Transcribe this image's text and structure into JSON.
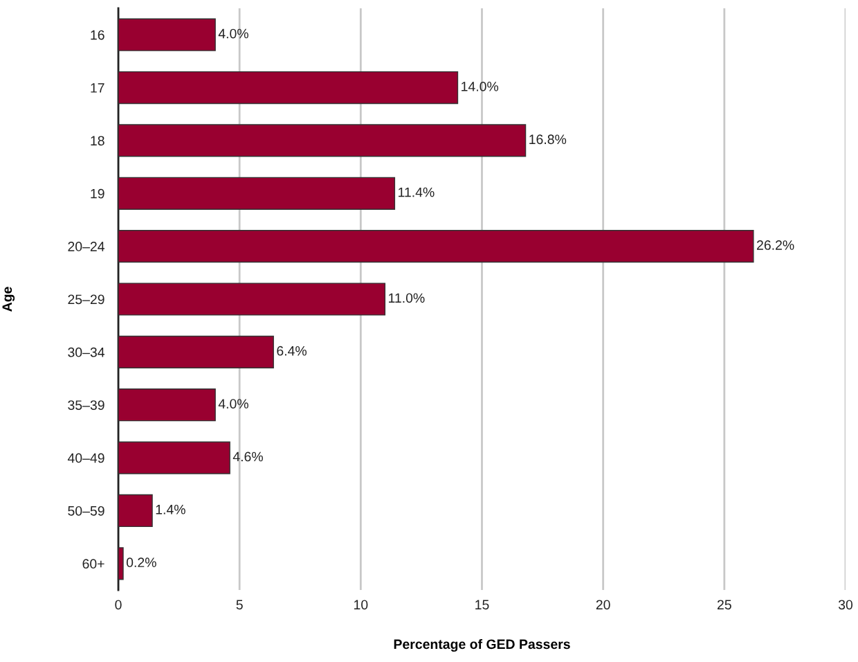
{
  "chart_data": {
    "type": "bar",
    "orientation": "horizontal",
    "xlabel": "Percentage of GED Passers",
    "ylabel": "Age",
    "categories": [
      "16",
      "17",
      "18",
      "19",
      "20–24",
      "25–29",
      "30–34",
      "35–39",
      "40–49",
      "50–59",
      "60+"
    ],
    "values": [
      4.0,
      14.0,
      16.8,
      11.4,
      26.2,
      11.0,
      6.4,
      4.0,
      4.6,
      1.4,
      0.2
    ],
    "value_labels": [
      "4.0%",
      "14.0%",
      "16.8%",
      "11.4%",
      "26.2%",
      "11.0%",
      "6.4%",
      "4.0%",
      "4.6%",
      "1.4%",
      "0.2%"
    ],
    "color": "#990030",
    "xlim": [
      0,
      30
    ],
    "xticks": [
      0,
      5,
      10,
      15,
      20,
      25,
      30
    ],
    "grid": "x"
  }
}
